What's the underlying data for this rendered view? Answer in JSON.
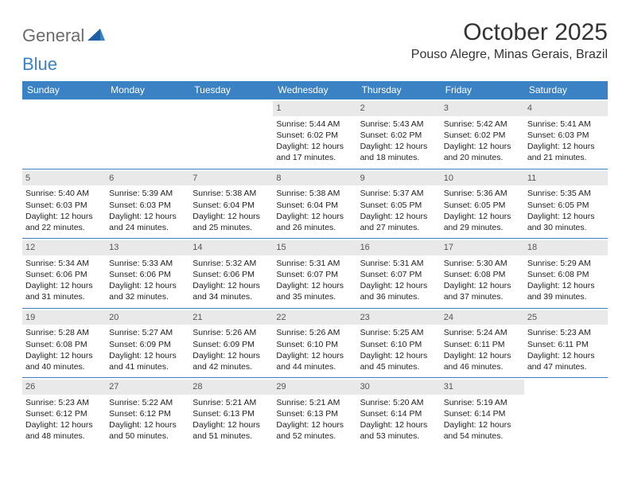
{
  "brand": {
    "part1": "General",
    "part2": "Blue"
  },
  "title": "October 2025",
  "location": "Pouso Alegre, Minas Gerais, Brazil",
  "colors": {
    "header_bg": "#3b82c4",
    "header_fg": "#ffffff",
    "daynum_bg": "#e9e9e9",
    "border": "#3b82c4",
    "logo_gray": "#6b6b6b",
    "logo_blue": "#3b82c4"
  },
  "weekdays": [
    "Sunday",
    "Monday",
    "Tuesday",
    "Wednesday",
    "Thursday",
    "Friday",
    "Saturday"
  ],
  "startOffset": 3,
  "days": [
    {
      "n": 1,
      "sunrise": "5:44 AM",
      "sunset": "6:02 PM",
      "daylight": "12 hours and 17 minutes."
    },
    {
      "n": 2,
      "sunrise": "5:43 AM",
      "sunset": "6:02 PM",
      "daylight": "12 hours and 18 minutes."
    },
    {
      "n": 3,
      "sunrise": "5:42 AM",
      "sunset": "6:02 PM",
      "daylight": "12 hours and 20 minutes."
    },
    {
      "n": 4,
      "sunrise": "5:41 AM",
      "sunset": "6:03 PM",
      "daylight": "12 hours and 21 minutes."
    },
    {
      "n": 5,
      "sunrise": "5:40 AM",
      "sunset": "6:03 PM",
      "daylight": "12 hours and 22 minutes."
    },
    {
      "n": 6,
      "sunrise": "5:39 AM",
      "sunset": "6:03 PM",
      "daylight": "12 hours and 24 minutes."
    },
    {
      "n": 7,
      "sunrise": "5:38 AM",
      "sunset": "6:04 PM",
      "daylight": "12 hours and 25 minutes."
    },
    {
      "n": 8,
      "sunrise": "5:38 AM",
      "sunset": "6:04 PM",
      "daylight": "12 hours and 26 minutes."
    },
    {
      "n": 9,
      "sunrise": "5:37 AM",
      "sunset": "6:05 PM",
      "daylight": "12 hours and 27 minutes."
    },
    {
      "n": 10,
      "sunrise": "5:36 AM",
      "sunset": "6:05 PM",
      "daylight": "12 hours and 29 minutes."
    },
    {
      "n": 11,
      "sunrise": "5:35 AM",
      "sunset": "6:05 PM",
      "daylight": "12 hours and 30 minutes."
    },
    {
      "n": 12,
      "sunrise": "5:34 AM",
      "sunset": "6:06 PM",
      "daylight": "12 hours and 31 minutes."
    },
    {
      "n": 13,
      "sunrise": "5:33 AM",
      "sunset": "6:06 PM",
      "daylight": "12 hours and 32 minutes."
    },
    {
      "n": 14,
      "sunrise": "5:32 AM",
      "sunset": "6:06 PM",
      "daylight": "12 hours and 34 minutes."
    },
    {
      "n": 15,
      "sunrise": "5:31 AM",
      "sunset": "6:07 PM",
      "daylight": "12 hours and 35 minutes."
    },
    {
      "n": 16,
      "sunrise": "5:31 AM",
      "sunset": "6:07 PM",
      "daylight": "12 hours and 36 minutes."
    },
    {
      "n": 17,
      "sunrise": "5:30 AM",
      "sunset": "6:08 PM",
      "daylight": "12 hours and 37 minutes."
    },
    {
      "n": 18,
      "sunrise": "5:29 AM",
      "sunset": "6:08 PM",
      "daylight": "12 hours and 39 minutes."
    },
    {
      "n": 19,
      "sunrise": "5:28 AM",
      "sunset": "6:08 PM",
      "daylight": "12 hours and 40 minutes."
    },
    {
      "n": 20,
      "sunrise": "5:27 AM",
      "sunset": "6:09 PM",
      "daylight": "12 hours and 41 minutes."
    },
    {
      "n": 21,
      "sunrise": "5:26 AM",
      "sunset": "6:09 PM",
      "daylight": "12 hours and 42 minutes."
    },
    {
      "n": 22,
      "sunrise": "5:26 AM",
      "sunset": "6:10 PM",
      "daylight": "12 hours and 44 minutes."
    },
    {
      "n": 23,
      "sunrise": "5:25 AM",
      "sunset": "6:10 PM",
      "daylight": "12 hours and 45 minutes."
    },
    {
      "n": 24,
      "sunrise": "5:24 AM",
      "sunset": "6:11 PM",
      "daylight": "12 hours and 46 minutes."
    },
    {
      "n": 25,
      "sunrise": "5:23 AM",
      "sunset": "6:11 PM",
      "daylight": "12 hours and 47 minutes."
    },
    {
      "n": 26,
      "sunrise": "5:23 AM",
      "sunset": "6:12 PM",
      "daylight": "12 hours and 48 minutes."
    },
    {
      "n": 27,
      "sunrise": "5:22 AM",
      "sunset": "6:12 PM",
      "daylight": "12 hours and 50 minutes."
    },
    {
      "n": 28,
      "sunrise": "5:21 AM",
      "sunset": "6:13 PM",
      "daylight": "12 hours and 51 minutes."
    },
    {
      "n": 29,
      "sunrise": "5:21 AM",
      "sunset": "6:13 PM",
      "daylight": "12 hours and 52 minutes."
    },
    {
      "n": 30,
      "sunrise": "5:20 AM",
      "sunset": "6:14 PM",
      "daylight": "12 hours and 53 minutes."
    },
    {
      "n": 31,
      "sunrise": "5:19 AM",
      "sunset": "6:14 PM",
      "daylight": "12 hours and 54 minutes."
    }
  ],
  "labels": {
    "sunrise": "Sunrise:",
    "sunset": "Sunset:",
    "daylight": "Daylight:"
  }
}
